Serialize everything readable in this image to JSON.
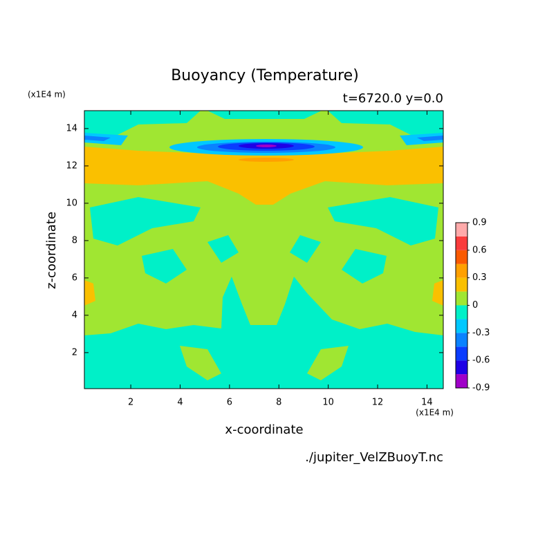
{
  "chart_data": {
    "type": "contour",
    "title": "Buoyancy (Temperature)",
    "subtitle": "t=6720.0 y=0.0",
    "x_label": "x-coordinate",
    "y_label": "z-coordinate",
    "x_unit": "(x1E4 m)",
    "y_unit": "(x1E4 m)",
    "footnote": "./jupiter_VelZBuoyT.nc",
    "xlim": [
      0.12,
      14.66
    ],
    "ylim": [
      0.07,
      14.96
    ],
    "xticks": [
      2,
      4,
      6,
      8,
      10,
      12,
      14
    ],
    "yticks": [
      2,
      4,
      6,
      8,
      10,
      12,
      14
    ],
    "levels": [
      -0.9,
      -0.75,
      -0.6,
      -0.45,
      -0.3,
      -0.15,
      0,
      0.15,
      0.3,
      0.45,
      0.6,
      0.75,
      0.9
    ],
    "colors": [
      "#a000c8",
      "#1e00e6",
      "#0a3cff",
      "#0a82ff",
      "#00c8ff",
      "#00f0c8",
      "#a0e632",
      "#fac000",
      "#ffa000",
      "#fa5a00",
      "#fa3c3c",
      "#ffaaaa"
    ],
    "colorbar_ticks": [
      -0.9,
      -0.6,
      -0.3,
      0,
      0.3,
      0.6,
      0.9
    ]
  }
}
